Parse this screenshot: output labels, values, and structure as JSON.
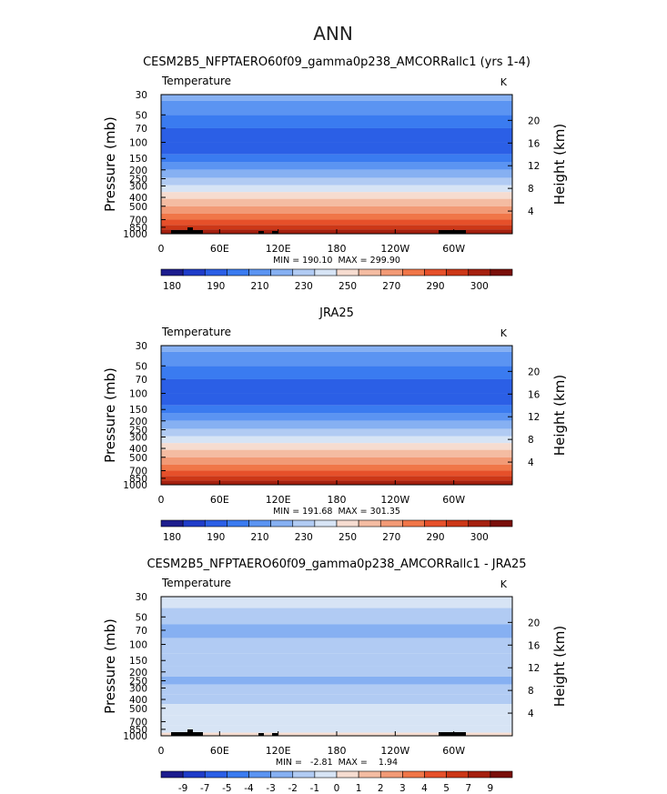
{
  "figure_title": "ANN",
  "chart_data": [
    {
      "type": "heatmap",
      "title": "CESM2B5_NFPTAERO60f09_gamma0p238_AMCORRallc1 (yrs 1-4)",
      "subtitle": "Temperature",
      "units": "K",
      "ylabel": "Pressure  (mb)",
      "ylabel_right": "Height  (km)",
      "xticks": [
        "0",
        "60E",
        "120E",
        "180",
        "120W",
        "60W"
      ],
      "yticks": [
        "30",
        "50",
        "70",
        "100",
        "150",
        "200",
        "250",
        "300",
        "400",
        "500",
        "700",
        "850",
        "1000"
      ],
      "yticks_right": [
        "20",
        "16",
        "12",
        "8",
        "4"
      ],
      "stats": "MIN = 190.10  MAX = 299.90",
      "colorbar_labels": [
        "180",
        "190",
        "210",
        "230",
        "250",
        "270",
        "290",
        "300"
      ],
      "colors": [
        "#1d1d8e",
        "#1f3cc9",
        "#2b5fe6",
        "#3a7bf0",
        "#5b94f2",
        "#86b0f2",
        "#b1cbf3",
        "#d7e4f5",
        "#f6dcd0",
        "#f4bca2",
        "#f29a76",
        "#f07648",
        "#e6502a",
        "#cc3717",
        "#a5200f",
        "#7a0f0a"
      ],
      "levels": [
        {
          "p": "30",
          "ci": 5
        },
        {
          "p": "40",
          "ci": 4
        },
        {
          "p": "60",
          "ci": 3
        },
        {
          "p": "80",
          "ci": 2
        },
        {
          "p": "120",
          "ci": 2
        },
        {
          "p": "150",
          "ci": 3
        },
        {
          "p": "180",
          "ci": 4
        },
        {
          "p": "220",
          "ci": 5
        },
        {
          "p": "270",
          "ci": 6
        },
        {
          "p": "320",
          "ci": 7
        },
        {
          "p": "380",
          "ci": 8
        },
        {
          "p": "450",
          "ci": 9
        },
        {
          "p": "550",
          "ci": 10
        },
        {
          "p": "650",
          "ci": 11
        },
        {
          "p": "750",
          "ci": 12
        },
        {
          "p": "850",
          "ci": 13
        },
        {
          "p": "950",
          "ci": 14
        }
      ]
    },
    {
      "type": "heatmap",
      "title": "JRA25",
      "subtitle": "Temperature",
      "units": "K",
      "ylabel": "Pressure  (mb)",
      "ylabel_right": "Height  (km)",
      "xticks": [
        "0",
        "60E",
        "120E",
        "180",
        "120W",
        "60W"
      ],
      "yticks": [
        "30",
        "50",
        "70",
        "100",
        "150",
        "200",
        "250",
        "300",
        "400",
        "500",
        "700",
        "850",
        "1000"
      ],
      "yticks_right": [
        "20",
        "16",
        "12",
        "8",
        "4"
      ],
      "stats": "MIN = 191.68  MAX = 301.35",
      "colorbar_labels": [
        "180",
        "190",
        "210",
        "230",
        "250",
        "270",
        "290",
        "300"
      ],
      "colors": [
        "#1d1d8e",
        "#1f3cc9",
        "#2b5fe6",
        "#3a7bf0",
        "#5b94f2",
        "#86b0f2",
        "#b1cbf3",
        "#d7e4f5",
        "#f6dcd0",
        "#f4bca2",
        "#f29a76",
        "#f07648",
        "#e6502a",
        "#cc3717",
        "#a5200f",
        "#7a0f0a"
      ],
      "levels": [
        {
          "p": "30",
          "ci": 5
        },
        {
          "p": "40",
          "ci": 4
        },
        {
          "p": "60",
          "ci": 3
        },
        {
          "p": "80",
          "ci": 2
        },
        {
          "p": "120",
          "ci": 2
        },
        {
          "p": "150",
          "ci": 3
        },
        {
          "p": "180",
          "ci": 4
        },
        {
          "p": "220",
          "ci": 5
        },
        {
          "p": "270",
          "ci": 6
        },
        {
          "p": "320",
          "ci": 7
        },
        {
          "p": "380",
          "ci": 8
        },
        {
          "p": "450",
          "ci": 9
        },
        {
          "p": "550",
          "ci": 10
        },
        {
          "p": "650",
          "ci": 11
        },
        {
          "p": "750",
          "ci": 12
        },
        {
          "p": "850",
          "ci": 13
        },
        {
          "p": "950",
          "ci": 14
        }
      ]
    },
    {
      "type": "heatmap",
      "title": "CESM2B5_NFPTAERO60f09_gamma0p238_AMCORRallc1 - JRA25",
      "subtitle": "Temperature",
      "units": "K",
      "ylabel": "Pressure  (mb)",
      "ylabel_right": "Height  (km)",
      "xticks": [
        "0",
        "60E",
        "120E",
        "180",
        "120W",
        "60W"
      ],
      "yticks": [
        "30",
        "50",
        "70",
        "100",
        "150",
        "200",
        "250",
        "300",
        "400",
        "500",
        "700",
        "850",
        "1000"
      ],
      "yticks_right": [
        "20",
        "16",
        "12",
        "8",
        "4"
      ],
      "stats": "MIN =   -2.81  MAX =    1.94",
      "colorbar_labels": [
        "-9",
        "-7",
        "-5",
        "-4",
        "-3",
        "-2",
        "-1",
        "0",
        "1",
        "2",
        "3",
        "4",
        "5",
        "7",
        "9"
      ],
      "colors": [
        "#1d1d8e",
        "#1f3cc9",
        "#2b5fe6",
        "#3a7bf0",
        "#5b94f2",
        "#86b0f2",
        "#b1cbf3",
        "#d7e4f5",
        "#f6dcd0",
        "#f4bca2",
        "#f29a76",
        "#f07648",
        "#e6502a",
        "#cc3717",
        "#a5200f",
        "#7a0f0a"
      ],
      "levels": [
        {
          "p": "30",
          "ci": 7
        },
        {
          "p": "50",
          "ci": 6
        },
        {
          "p": "70",
          "ci": 5
        },
        {
          "p": "100",
          "ci": 6
        },
        {
          "p": "150",
          "ci": 6
        },
        {
          "p": "200",
          "ci": 6
        },
        {
          "p": "250",
          "ci": 5
        },
        {
          "p": "300",
          "ci": 6
        },
        {
          "p": "400",
          "ci": 6
        },
        {
          "p": "500",
          "ci": 7
        },
        {
          "p": "700",
          "ci": 7
        },
        {
          "p": "850",
          "ci": 7
        },
        {
          "p": "1000",
          "ci": 8
        }
      ]
    }
  ]
}
